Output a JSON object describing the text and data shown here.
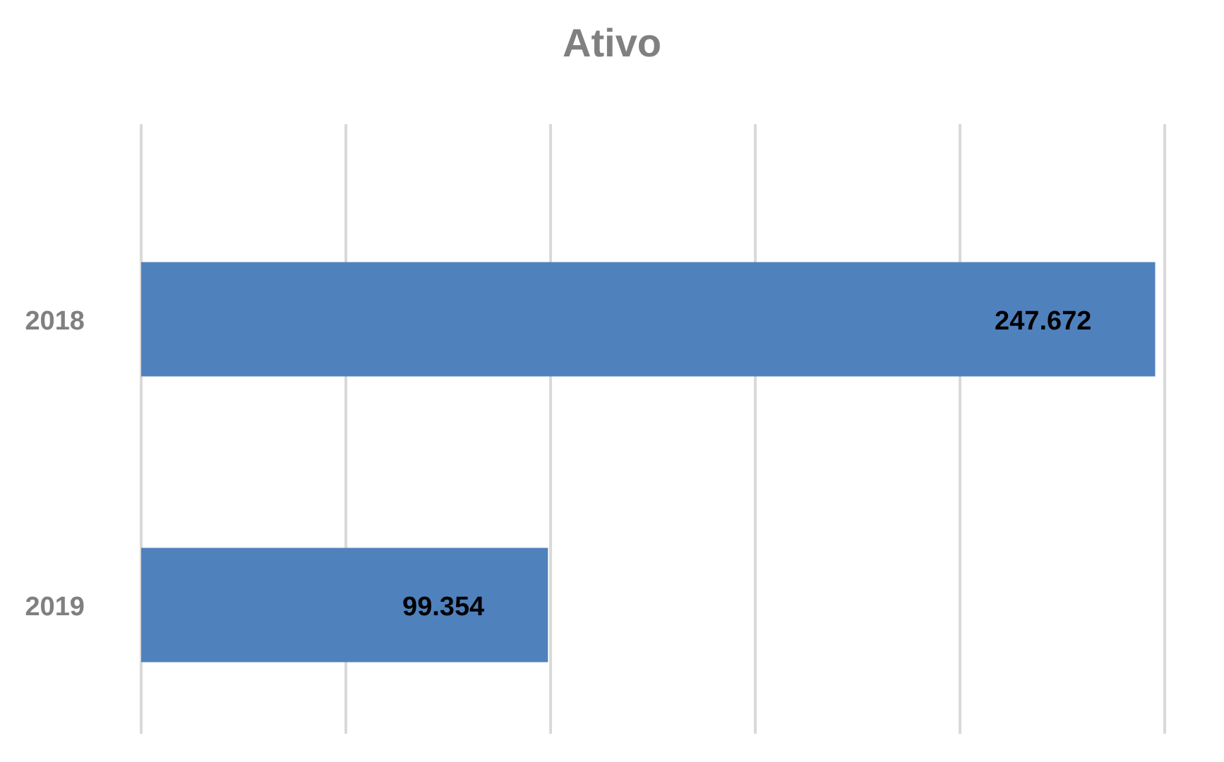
{
  "chart_data": {
    "type": "bar",
    "orientation": "horizontal",
    "title": "Ativo",
    "categories": [
      "2018",
      "2019"
    ],
    "values": [
      247672,
      99354
    ],
    "value_labels": [
      "247.672",
      "99.354"
    ],
    "color": "#4f81bd",
    "xlim": [
      0,
      250000
    ],
    "xticks": [
      {
        "value": 0,
        "label": null
      },
      {
        "value": 50000,
        "label": null
      },
      {
        "value": 100000,
        "label": null
      },
      {
        "value": 150000,
        "label": null
      },
      {
        "value": 200000,
        "label": null
      },
      {
        "value": 250000,
        "label": null
      }
    ],
    "grid": "x",
    "tick_labels": "y"
  }
}
